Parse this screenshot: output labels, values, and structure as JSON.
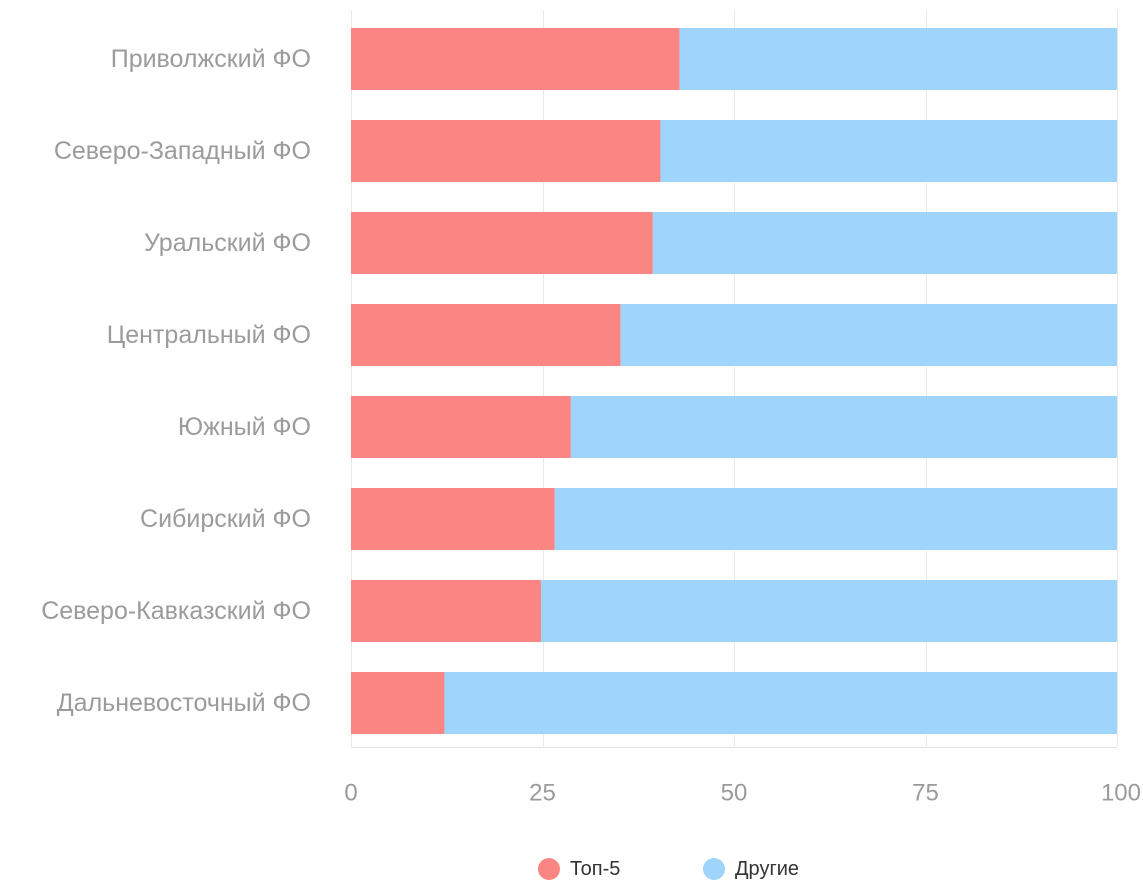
{
  "chart_data": {
    "type": "bar",
    "orientation": "horizontal",
    "stacked": true,
    "categories": [
      "Приволжский ФО",
      "Северо-Западный ФО",
      "Уральский ФО",
      "Центральный ФО",
      "Южный ФО",
      "Сибирский ФО",
      "Северо-Кавказский ФО",
      "Дальневосточный ФО"
    ],
    "series": [
      {
        "name": "Топ-5",
        "color": "#fa8582",
        "values": [
          42.9,
          40.4,
          39.4,
          35.2,
          28.7,
          26.6,
          24.8,
          12.2
        ]
      },
      {
        "name": "Другие",
        "color": "#9fd4fd",
        "values": [
          57.1,
          59.6,
          60.6,
          64.8,
          71.3,
          73.4,
          75.2,
          87.8
        ]
      }
    ],
    "xlim": [
      0,
      100
    ],
    "xticks": [
      0,
      25,
      50,
      75,
      100
    ],
    "xlabel": "",
    "ylabel": "",
    "grid": true,
    "legend_position": "bottom"
  }
}
